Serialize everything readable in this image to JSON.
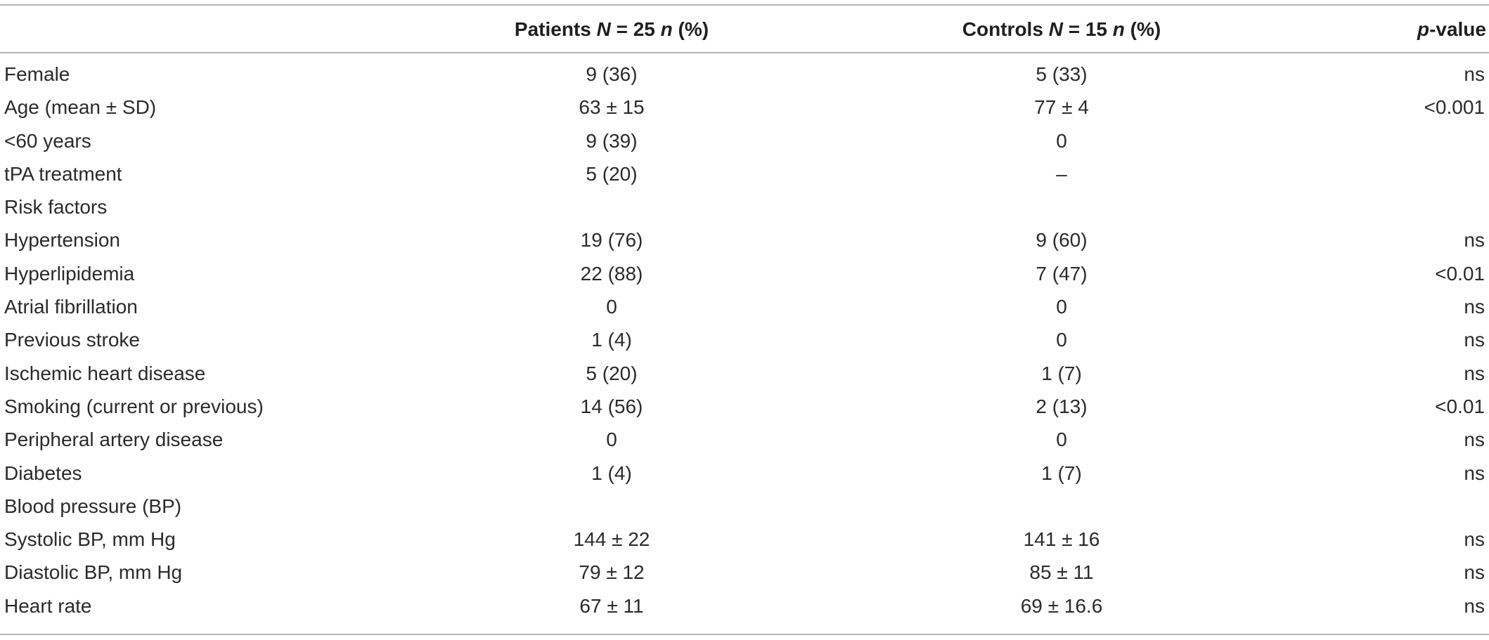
{
  "header": {
    "col_label": "",
    "patients": {
      "pre": "Patients ",
      "N": "N",
      "mid": " = 25 ",
      "n": "n",
      "post": " (%)"
    },
    "controls": {
      "pre": "Controls ",
      "N": "N",
      "mid": " = 15 ",
      "n": "n",
      "post": " (%)"
    },
    "pvalue": {
      "p": "p",
      "post": "-value"
    }
  },
  "rows": [
    {
      "label": "Female",
      "patients": "9 (36)",
      "controls": "5 (33)",
      "p": "ns"
    },
    {
      "label": "Age (mean ± SD)",
      "patients": "63 ± 15",
      "controls": "77 ± 4",
      "p": "<0.001"
    },
    {
      "label": "<60 years",
      "patients": "9 (39)",
      "controls": "0",
      "p": ""
    },
    {
      "label": "tPA treatment",
      "patients": "5 (20)",
      "controls": "–",
      "p": ""
    },
    {
      "label": "Risk factors",
      "patients": "",
      "controls": "",
      "p": ""
    },
    {
      "label": "Hypertension",
      "patients": "19 (76)",
      "controls": "9 (60)",
      "p": "ns"
    },
    {
      "label": "Hyperlipidemia",
      "patients": "22 (88)",
      "controls": "7 (47)",
      "p": "<0.01"
    },
    {
      "label": "Atrial fibrillation",
      "patients": "0",
      "controls": "0",
      "p": "ns"
    },
    {
      "label": "Previous stroke",
      "patients": "1 (4)",
      "controls": "0",
      "p": "ns"
    },
    {
      "label": "Ischemic heart disease",
      "patients": "5 (20)",
      "controls": "1 (7)",
      "p": "ns"
    },
    {
      "label": "Smoking (current or previous)",
      "patients": "14 (56)",
      "controls": "2 (13)",
      "p": "<0.01"
    },
    {
      "label": "Peripheral artery disease",
      "patients": "0",
      "controls": "0",
      "p": "ns"
    },
    {
      "label": "Diabetes",
      "patients": "1 (4)",
      "controls": "1 (7)",
      "p": "ns"
    },
    {
      "label": "Blood pressure (BP)",
      "patients": "",
      "controls": "",
      "p": ""
    },
    {
      "label": "Systolic BP, mm Hg",
      "patients": "144 ± 22",
      "controls": "141 ± 16",
      "p": "ns"
    },
    {
      "label": "Diastolic BP, mm Hg",
      "patients": "79 ± 12",
      "controls": "85 ± 11",
      "p": "ns"
    },
    {
      "label": "Heart rate",
      "patients": "67 ± 11",
      "controls": "69 ± 16.6",
      "p": "ns"
    }
  ]
}
